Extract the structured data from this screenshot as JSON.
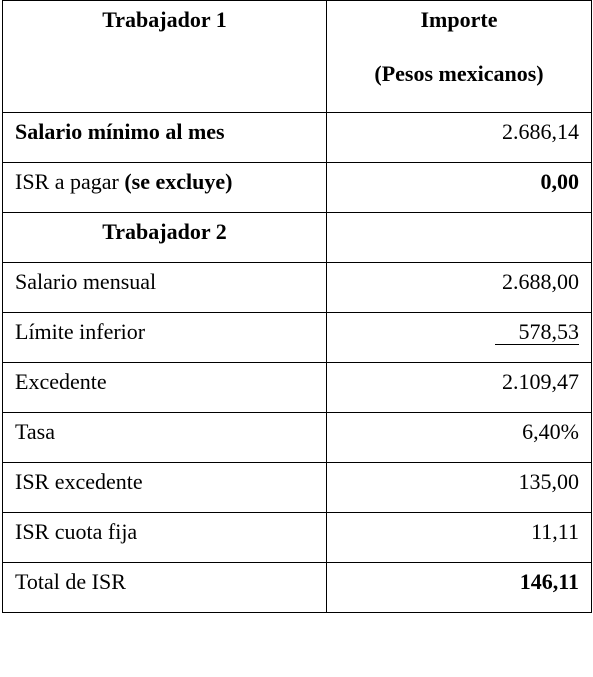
{
  "header": {
    "col1": "Trabajador 1",
    "col2_line1": "Importe",
    "col2_line2": "(Pesos mexicanos)"
  },
  "rows": [
    {
      "label": "Salario mínimo al mes",
      "value": "2.686,14"
    },
    {
      "label_plain": "ISR a pagar ",
      "label_bold": "(se excluye)",
      "value": "0,00"
    },
    {
      "label": "Trabajador 2",
      "value": ""
    },
    {
      "label": "Salario mensual",
      "value": "2.688,00"
    },
    {
      "label": "Límite inferior",
      "value": "578,53"
    },
    {
      "label": "Excedente",
      "value": "2.109,47"
    },
    {
      "label": "Tasa",
      "value": "6,40%"
    },
    {
      "label": "ISR excedente",
      "value": "135,00"
    },
    {
      "label": "ISR cuota fija",
      "value": "11,11"
    },
    {
      "label": "Total de ISR",
      "value": "146,11"
    }
  ]
}
